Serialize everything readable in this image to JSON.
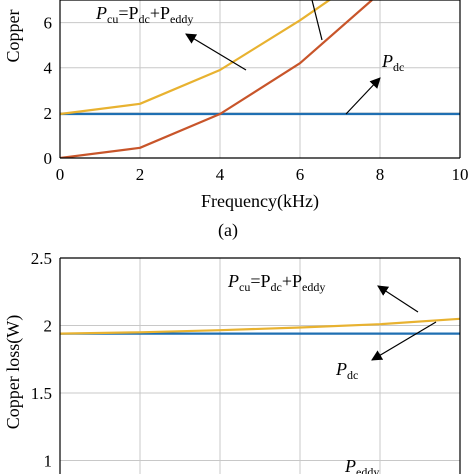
{
  "chart_data": [
    {
      "type": "line",
      "panel_label": "(a)",
      "xlabel": "Frequency(kHz)",
      "ylabel": "Copper",
      "xlim": [
        0,
        10
      ],
      "ylim": [
        0,
        7
      ],
      "xticks": [
        0,
        2,
        4,
        6,
        8,
        10
      ],
      "yticks": [
        0,
        2,
        4,
        6
      ],
      "grid": true,
      "series": [
        {
          "key": "p_dc",
          "color": "#1f6fb2",
          "x": [
            0,
            2,
            4,
            6,
            8,
            10
          ],
          "values": [
            1.95,
            1.95,
            1.95,
            1.95,
            1.95,
            1.95
          ]
        },
        {
          "key": "p_cu",
          "color": "#e8b230",
          "x": [
            0,
            2,
            4,
            6,
            6.9
          ],
          "values": [
            1.95,
            2.4,
            3.9,
            6.1,
            7.2
          ]
        },
        {
          "key": "p_eddy",
          "color": "#c8552a",
          "x": [
            0,
            2,
            4,
            6,
            7.8
          ],
          "values": [
            0,
            0.45,
            1.95,
            4.2,
            7.0
          ]
        }
      ],
      "annotations": [
        {
          "key": "p_cu",
          "parts": [
            "P",
            "cu",
            "=P",
            "dc",
            "+P",
            "eddy"
          ]
        },
        {
          "key": "p_dc",
          "parts": [
            "P",
            "dc"
          ]
        }
      ]
    },
    {
      "type": "line",
      "panel_label": "",
      "xlabel": "",
      "ylabel": "Copper loss(W)",
      "xlim": [
        0,
        10
      ],
      "ylim": [
        0.9,
        2.5
      ],
      "yticks": [
        1,
        1.5,
        2,
        2.5
      ],
      "ytick_labels": [
        "1",
        "1.5",
        "2",
        "2.5"
      ],
      "grid": true,
      "series": [
        {
          "key": "p_dc",
          "color": "#1f6fb2",
          "x": [
            0,
            10
          ],
          "values": [
            1.94,
            1.94
          ]
        },
        {
          "key": "p_cu",
          "color": "#e8b230",
          "x": [
            0,
            2,
            4,
            6,
            8,
            10
          ],
          "values": [
            1.94,
            1.95,
            1.965,
            1.985,
            2.01,
            2.05
          ]
        }
      ],
      "annotations": [
        {
          "key": "p_cu",
          "parts": [
            "P",
            "cu",
            "=P",
            "dc",
            "+P",
            "eddy"
          ]
        },
        {
          "key": "p_dc",
          "parts": [
            "P",
            "dc"
          ]
        },
        {
          "key": "p_eddy",
          "parts": [
            "P",
            "eddy"
          ]
        }
      ]
    }
  ]
}
